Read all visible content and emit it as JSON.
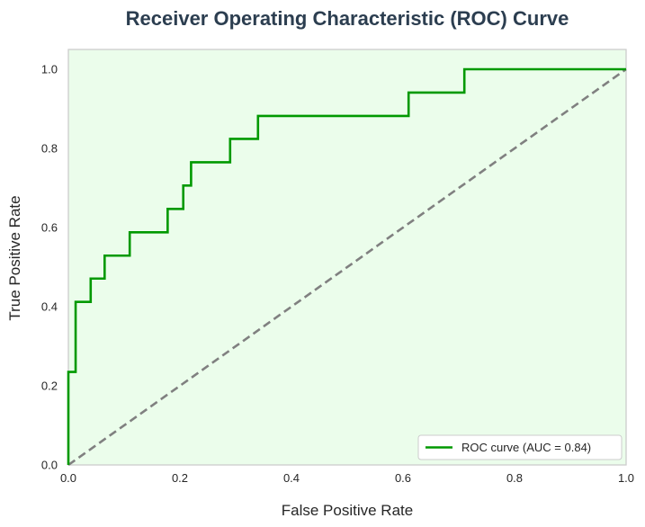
{
  "chart_data": {
    "type": "line",
    "title": "Receiver Operating Characteristic (ROC) Curve",
    "xlabel": "False Positive Rate",
    "ylabel": "True Positive Rate",
    "xlim": [
      0.0,
      1.0
    ],
    "ylim": [
      0.0,
      1.05
    ],
    "xticks": [
      0.0,
      0.2,
      0.4,
      0.6,
      0.8,
      1.0
    ],
    "xtick_labels": [
      "0.0",
      "0.2",
      "0.4",
      "0.6",
      "0.8",
      "1.0"
    ],
    "yticks": [
      0.0,
      0.2,
      0.4,
      0.6,
      0.8,
      1.0
    ],
    "ytick_labels": [
      "0.0",
      "0.2",
      "0.4",
      "0.6",
      "0.8",
      "1.0"
    ],
    "grid": false,
    "legend_position": "lower-right",
    "series": [
      {
        "name": "ROC curve (AUC = 0.84)",
        "color": "#009900",
        "line_style": "solid",
        "x": [
          0.0,
          0.0,
          0.013,
          0.013,
          0.04,
          0.04,
          0.065,
          0.065,
          0.11,
          0.11,
          0.178,
          0.178,
          0.206,
          0.206,
          0.22,
          0.22,
          0.29,
          0.29,
          0.34,
          0.34,
          0.61,
          0.61,
          0.71,
          0.71,
          1.0
        ],
        "y": [
          0.0,
          0.235,
          0.235,
          0.412,
          0.412,
          0.471,
          0.471,
          0.529,
          0.529,
          0.588,
          0.588,
          0.647,
          0.647,
          0.706,
          0.706,
          0.765,
          0.765,
          0.824,
          0.824,
          0.882,
          0.882,
          0.941,
          0.941,
          1.0,
          1.0
        ]
      },
      {
        "color": "#808080",
        "line_style": "dashed",
        "x": [
          0.0,
          1.0
        ],
        "y": [
          0.0,
          1.0
        ]
      }
    ],
    "colors": {
      "plot_background": "#ebfdeb",
      "plot_border": "#cccccc",
      "title": "#2c3e50",
      "text": "#262626"
    }
  }
}
